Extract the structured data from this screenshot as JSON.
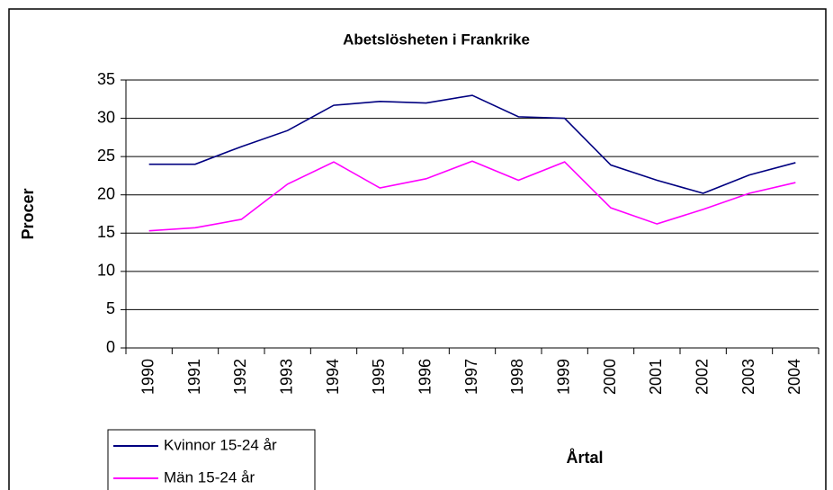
{
  "chart_data": {
    "type": "line",
    "title": "Abetslösheten i Frankrike",
    "y_label": "Procer",
    "x_label": "Årtal",
    "categories": [
      "1990",
      "1991",
      "1992",
      "1993",
      "1994",
      "1995",
      "1996",
      "1997",
      "1998",
      "1999",
      "2000",
      "2001",
      "2002",
      "2003",
      "2004"
    ],
    "series": [
      {
        "name": "Kvinnor 15-24 år",
        "color": "#000080",
        "values": [
          24.0,
          24.0,
          26.3,
          28.4,
          31.7,
          32.2,
          32.0,
          33.0,
          30.2,
          30.0,
          23.9,
          21.9,
          20.2,
          22.6,
          24.2
        ]
      },
      {
        "name": "Män 15-24 år",
        "color": "#ff00ff",
        "values": [
          15.3,
          15.7,
          16.8,
          21.4,
          24.3,
          20.9,
          22.1,
          24.4,
          21.9,
          24.3,
          18.3,
          16.2,
          18.1,
          20.2,
          21.6
        ]
      }
    ],
    "ylim": [
      0,
      35
    ],
    "yticks": [
      0,
      5,
      10,
      15,
      20,
      25,
      30,
      35
    ],
    "grid": true
  }
}
